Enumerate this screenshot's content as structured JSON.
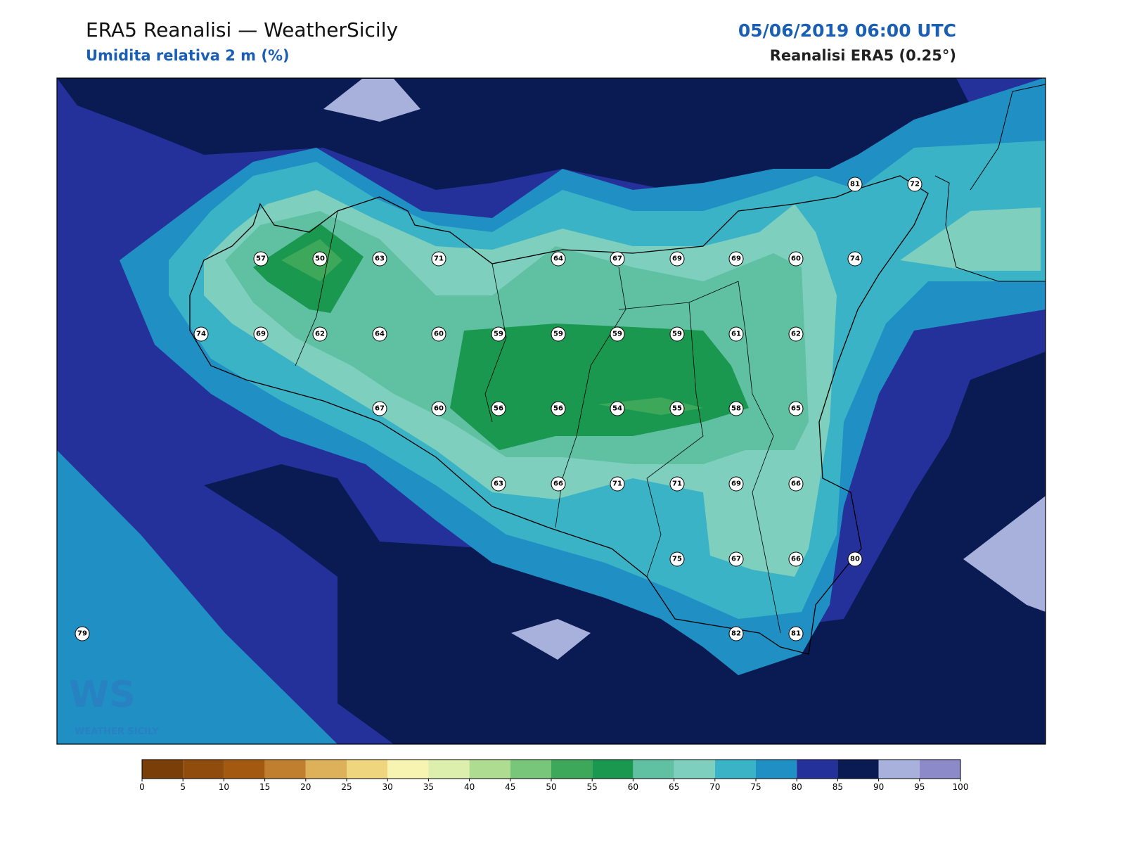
{
  "header": {
    "title": "ERA5 Reanalisi — WeatherSicily",
    "subtitle": "Umidita relativa 2 m (%)",
    "datetime": "05/06/2019 06:00 UTC",
    "source": "Reanalisi ERA5 (0.25°)"
  },
  "logo": {
    "mark": "WS",
    "text": "WEATHER SICILY"
  },
  "stations": [
    81,
    72,
    57,
    50,
    63,
    71,
    64,
    67,
    69,
    69,
    60,
    74,
    74,
    69,
    62,
    64,
    60,
    59,
    59,
    59,
    59,
    61,
    62,
    67,
    60,
    56,
    56,
    54,
    55,
    58,
    65,
    63,
    66,
    71,
    71,
    69,
    66,
    75,
    67,
    66,
    80,
    79,
    82,
    81
  ],
  "colorbar": {
    "ticks": [
      0,
      5,
      10,
      15,
      20,
      25,
      30,
      35,
      40,
      45,
      50,
      55,
      60,
      65,
      70,
      75,
      80,
      85,
      90,
      95,
      100
    ],
    "colors": [
      "#7a3f08",
      "#8f4c0c",
      "#a35a10",
      "#c07f2e",
      "#ddb05a",
      "#f0d57f",
      "#f7f3b0",
      "#dcefad",
      "#aedd92",
      "#78c67a",
      "#3ea85a",
      "#1a9850",
      "#5fc1a2",
      "#7ecfbe",
      "#3bb3c7",
      "#1f8fc4",
      "#25319a",
      "#0a1a52",
      "#a8b0dc",
      "#8c8ac8"
    ]
  }
}
